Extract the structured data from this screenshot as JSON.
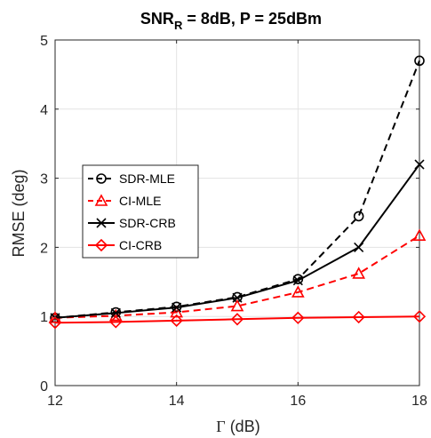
{
  "chart_data": {
    "type": "line",
    "title": {
      "main": "SNR",
      "sub": "R",
      "rest": " = 8dB,  P = 25dBm"
    },
    "xlabel": {
      "symbol": "Γ",
      "unit": " (dB)"
    },
    "ylabel": "RMSE (deg)",
    "xlim": [
      12,
      18
    ],
    "ylim": [
      0,
      5
    ],
    "xticks": [
      12,
      14,
      16,
      18
    ],
    "yticks": [
      0,
      1,
      2,
      3,
      4,
      5
    ],
    "grid": true,
    "legend_position": "center-left",
    "x": [
      12,
      13,
      14,
      15,
      16,
      17,
      18
    ],
    "series": [
      {
        "name": "SDR-MLE",
        "color": "#000000",
        "dash": "dashed",
        "marker": "circle",
        "values": [
          0.98,
          1.06,
          1.14,
          1.28,
          1.54,
          2.45,
          4.7
        ]
      },
      {
        "name": "CI-MLE",
        "color": "#ff0000",
        "dash": "dashed",
        "marker": "triangle",
        "values": [
          0.98,
          1.01,
          1.06,
          1.15,
          1.35,
          1.62,
          2.17
        ]
      },
      {
        "name": "SDR-CRB",
        "color": "#000000",
        "dash": "solid",
        "marker": "x",
        "values": [
          0.98,
          1.05,
          1.13,
          1.27,
          1.52,
          2.0,
          3.2
        ]
      },
      {
        "name": "CI-CRB",
        "color": "#ff0000",
        "dash": "solid",
        "marker": "diamond",
        "values": [
          0.91,
          0.92,
          0.94,
          0.96,
          0.98,
          0.99,
          1.0
        ]
      }
    ]
  }
}
